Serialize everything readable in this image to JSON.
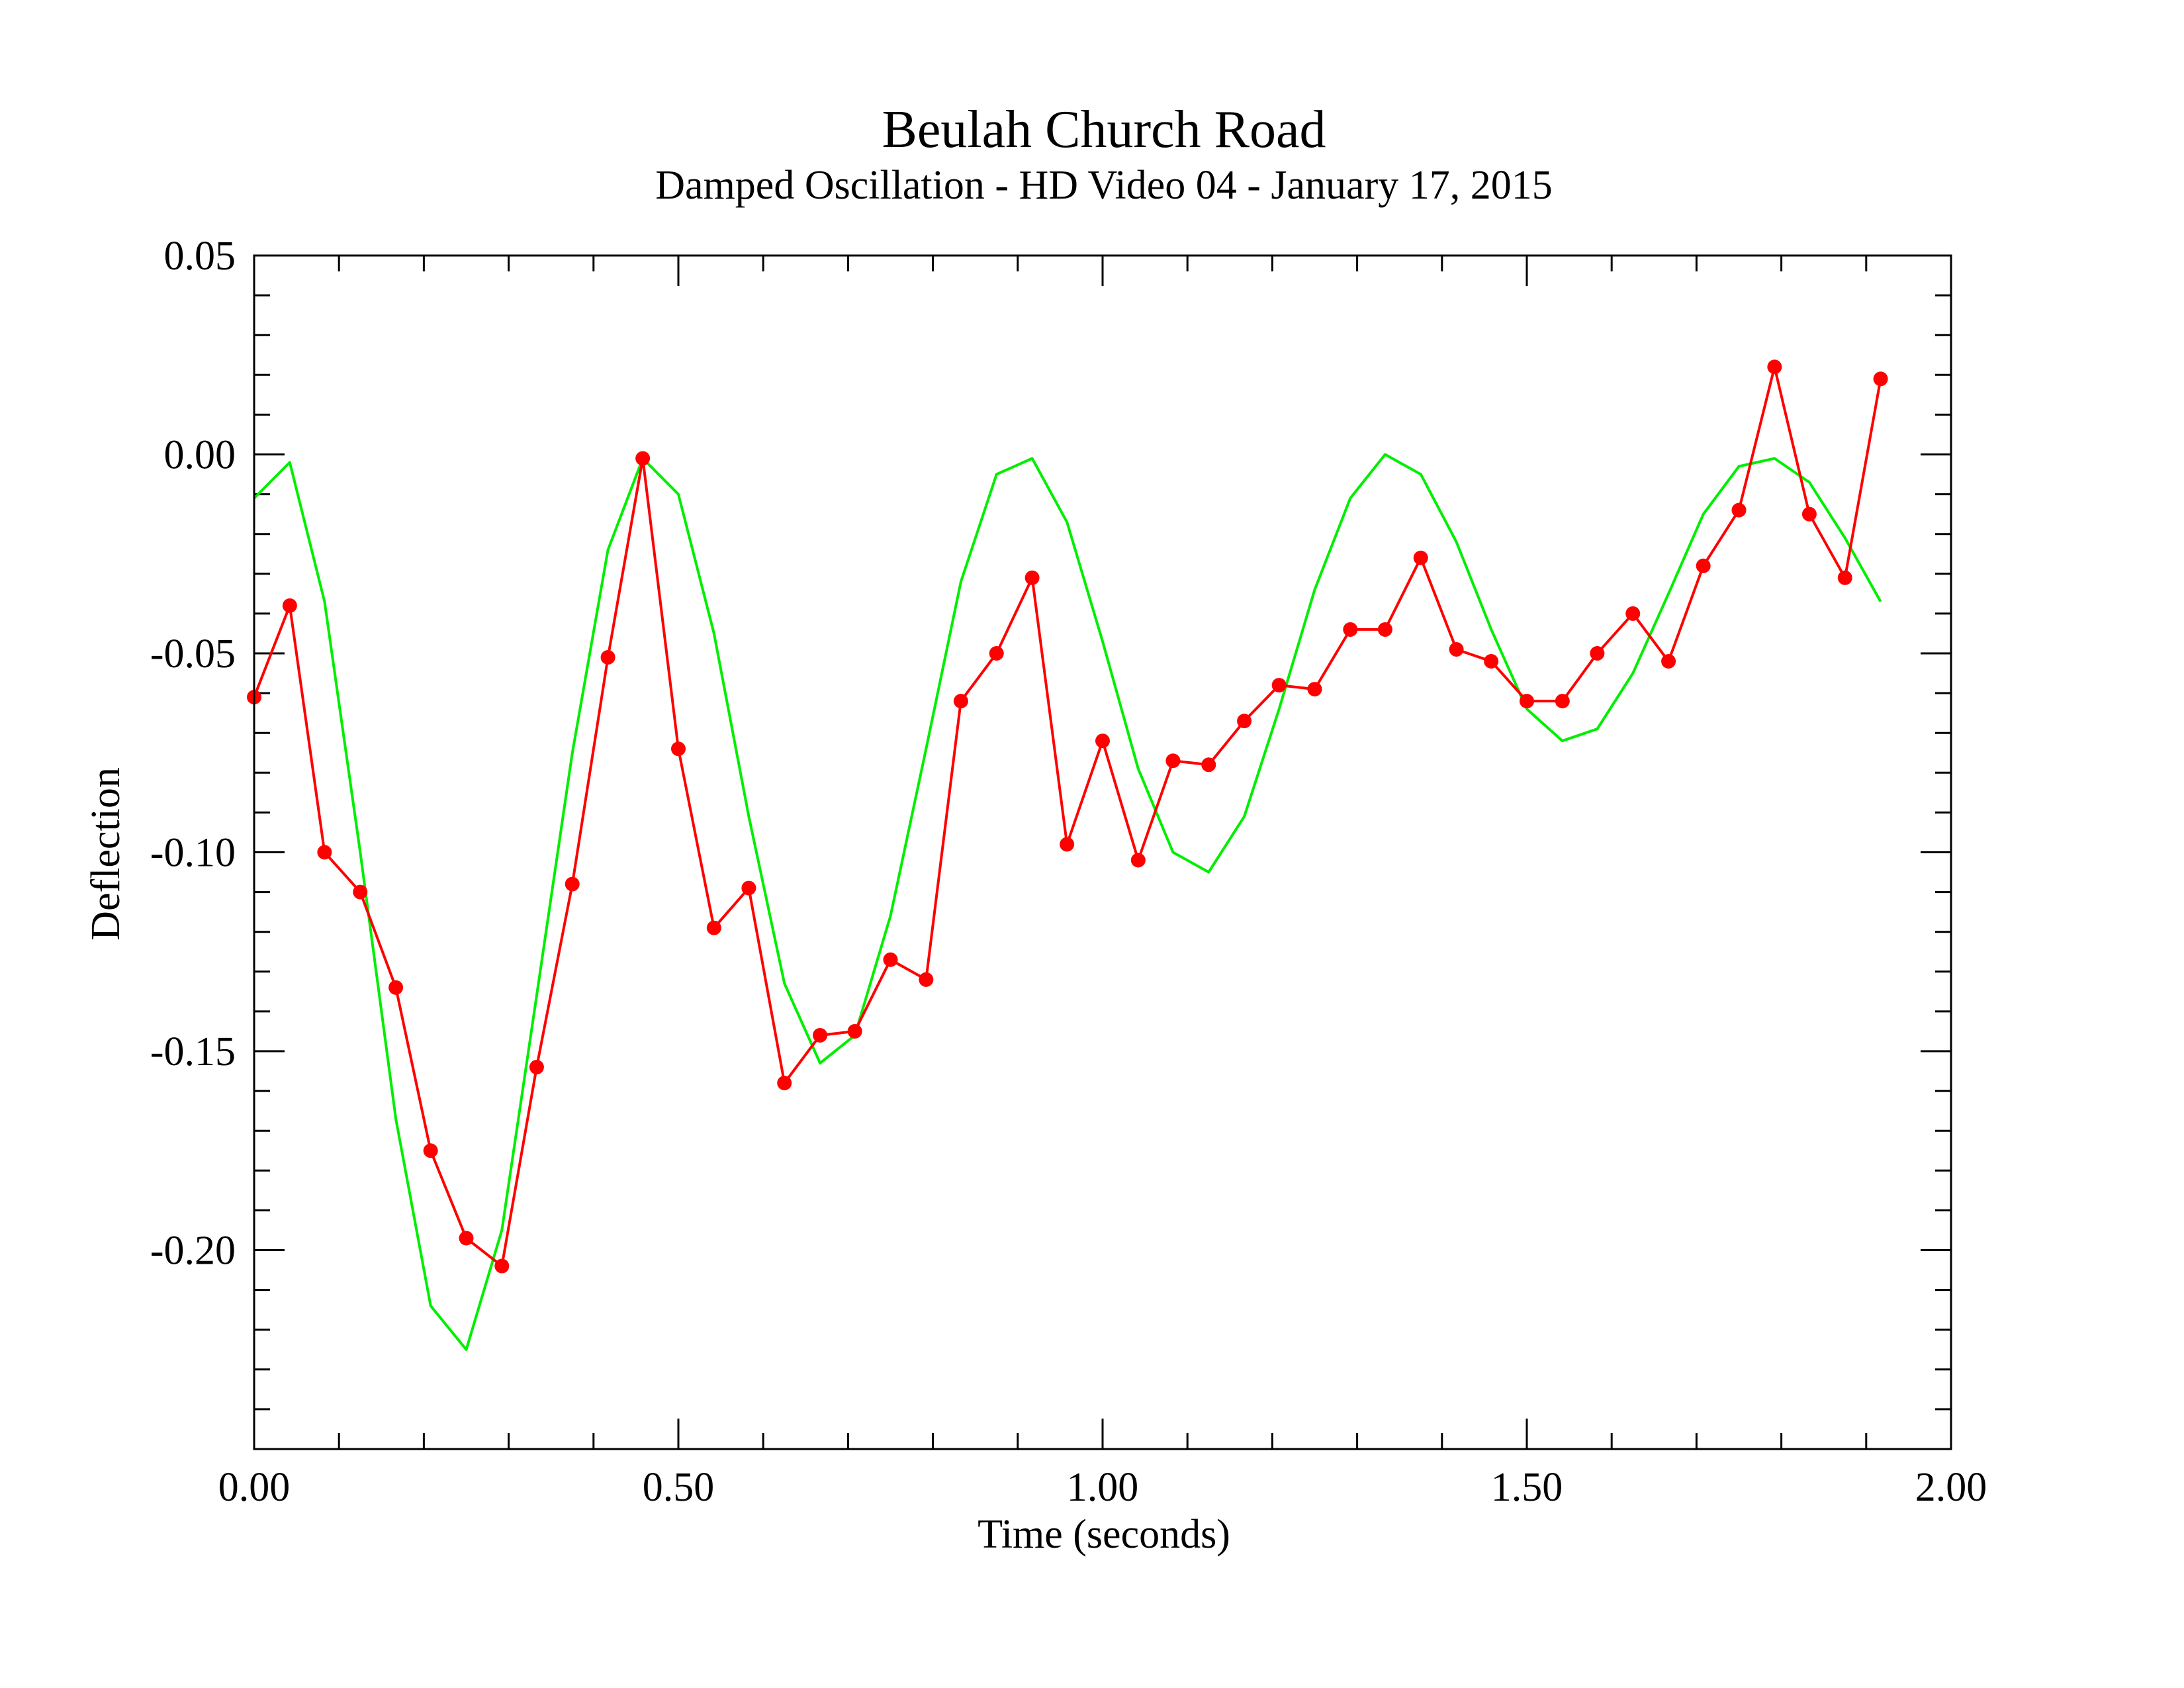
{
  "chart_data": {
    "type": "line",
    "title": "Beulah Church Road",
    "subtitle": "Damped Oscillation  - HD Video 04 - January 17, 2015",
    "xlabel": "Time (seconds)",
    "ylabel": "Deflection",
    "xlim": [
      0.0,
      2.0
    ],
    "ylim": [
      -0.25,
      0.05
    ],
    "x_ticks": [
      0.0,
      0.5,
      1.0,
      1.5,
      2.0
    ],
    "x_tick_labels": [
      "0.00",
      "0.50",
      "1.00",
      "1.50",
      "2.00"
    ],
    "y_ticks": [
      0.05,
      0.0,
      -0.05,
      -0.1,
      -0.15,
      -0.2
    ],
    "y_tick_labels": [
      "0.05",
      "0.00",
      "-0.05",
      "-0.10",
      "-0.15",
      "-0.20"
    ],
    "grid": false,
    "legend": "none",
    "series": [
      {
        "color": "#ff0000",
        "markers": true,
        "x": [
          0.0,
          0.042,
          0.083,
          0.125,
          0.167,
          0.208,
          0.25,
          0.292,
          0.333,
          0.375,
          0.417,
          0.458,
          0.5,
          0.542,
          0.583,
          0.625,
          0.667,
          0.708,
          0.75,
          0.792,
          0.833,
          0.875,
          0.917,
          0.958,
          1.0,
          1.042,
          1.083,
          1.125,
          1.167,
          1.208,
          1.25,
          1.292,
          1.333,
          1.375,
          1.417,
          1.458,
          1.5,
          1.542,
          1.583,
          1.625,
          1.667,
          1.708,
          1.75,
          1.792,
          1.833,
          1.875,
          1.917
        ],
        "y": [
          -0.061,
          -0.038,
          -0.1,
          -0.11,
          -0.134,
          -0.175,
          -0.197,
          -0.204,
          -0.154,
          -0.108,
          -0.051,
          -0.001,
          -0.074,
          -0.119,
          -0.109,
          -0.158,
          -0.146,
          -0.145,
          -0.127,
          -0.132,
          -0.062,
          -0.05,
          -0.031,
          -0.098,
          -0.072,
          -0.102,
          -0.077,
          -0.078,
          -0.067,
          -0.058,
          -0.059,
          -0.044,
          -0.044,
          -0.026,
          -0.049,
          -0.052,
          -0.062,
          -0.062,
          -0.05,
          -0.04,
          -0.052,
          -0.028,
          -0.014,
          0.022,
          -0.015,
          -0.031,
          0.019
        ]
      },
      {
        "color": "#00ee00",
        "markers": false,
        "x": [
          0.0,
          0.042,
          0.083,
          0.125,
          0.167,
          0.208,
          0.25,
          0.292,
          0.333,
          0.375,
          0.417,
          0.458,
          0.5,
          0.542,
          0.583,
          0.625,
          0.667,
          0.708,
          0.75,
          0.792,
          0.833,
          0.875,
          0.917,
          0.958,
          1.0,
          1.042,
          1.083,
          1.125,
          1.167,
          1.208,
          1.25,
          1.292,
          1.333,
          1.375,
          1.417,
          1.458,
          1.5,
          1.542,
          1.583,
          1.625,
          1.667,
          1.708,
          1.75,
          1.792,
          1.833,
          1.875,
          1.917
        ],
        "y": [
          -0.011,
          -0.002,
          -0.037,
          -0.1,
          -0.167,
          -0.214,
          -0.225,
          -0.195,
          -0.136,
          -0.075,
          -0.024,
          -0.001,
          -0.01,
          -0.045,
          -0.091,
          -0.133,
          -0.153,
          -0.146,
          -0.116,
          -0.074,
          -0.032,
          -0.005,
          -0.001,
          -0.017,
          -0.047,
          -0.079,
          -0.1,
          -0.105,
          -0.091,
          -0.064,
          -0.034,
          -0.011,
          0.0,
          -0.005,
          -0.022,
          -0.044,
          -0.064,
          -0.072,
          -0.069,
          -0.055,
          -0.035,
          -0.015,
          -0.003,
          -0.001,
          -0.007,
          -0.021,
          -0.037
        ]
      }
    ]
  }
}
